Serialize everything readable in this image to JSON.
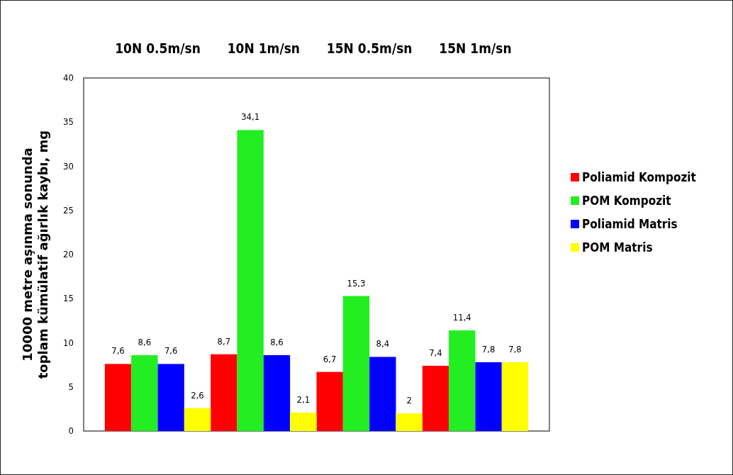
{
  "chart_data": {
    "type": "bar",
    "ylabel": "10000 metre aşınma  sonunda\ntoplam kümülatif ağırlık kaybı, mg",
    "categories": [
      "10N 0.5m/sn",
      "10N 1m/sn",
      "15N 0.5m/sn",
      "15N 1m/sn"
    ],
    "series": [
      {
        "name": "Poliamid Kompozit",
        "color": "#ff0000",
        "values": [
          7.6,
          8.7,
          6.7,
          7.4
        ],
        "value_labels": [
          "7,6",
          "8,7",
          "6,7",
          "7,4"
        ]
      },
      {
        "name": "POM Kompozit",
        "color": "#22ee22",
        "values": [
          8.6,
          34.1,
          15.3,
          11.4
        ],
        "value_labels": [
          "8,6",
          "34,1",
          "15,3",
          "11,4"
        ]
      },
      {
        "name": "Poliamid Matris",
        "color": "#0000ff",
        "values": [
          7.6,
          8.6,
          8.4,
          7.8
        ],
        "value_labels": [
          "7,6",
          "8,6",
          "8,4",
          "7,8"
        ]
      },
      {
        "name": "POM Matris",
        "color": "#ffff00",
        "values": [
          2.6,
          2.1,
          2,
          7.8
        ],
        "value_labels": [
          "2,6",
          "2,1",
          "2",
          "7,8"
        ]
      }
    ],
    "ylim": [
      0,
      40
    ],
    "yticks": [
      0,
      5,
      10,
      15,
      20,
      25,
      30,
      35,
      40
    ],
    "legend": "right",
    "grid": false
  }
}
